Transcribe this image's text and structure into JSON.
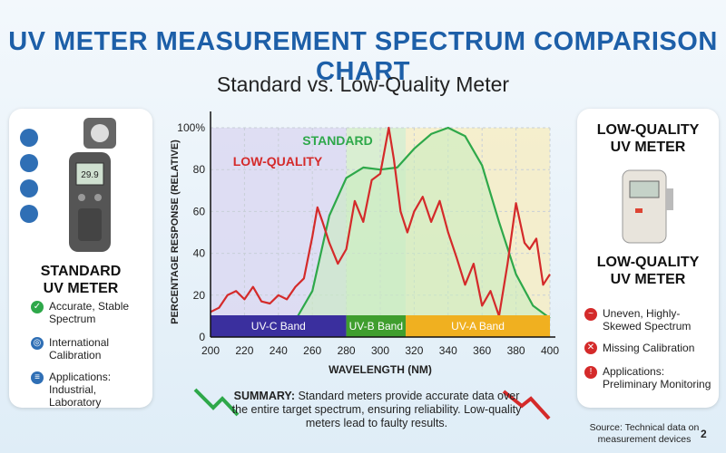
{
  "header": {
    "title": "UV METER MEASUREMENT SPECTRUM COMPARISON CHART",
    "subtitle": "Standard vs. Low-Quality Meter"
  },
  "chart_data": {
    "type": "line",
    "xlabel": "WAVELENGTH (NM)",
    "ylabel": "PERCENTAGE RESPONSE (RELATIVE)",
    "xlim": [
      200,
      400
    ],
    "xticks": [
      200,
      220,
      240,
      260,
      280,
      300,
      320,
      340,
      360,
      380,
      400
    ],
    "ylim": [
      0,
      100
    ],
    "yticks": [
      0,
      20,
      40,
      60,
      80,
      {
        "value": 100,
        "label": "100%"
      }
    ],
    "grid": true,
    "bands": [
      {
        "name": "UV-C Band",
        "start": 200,
        "end": 280,
        "color": "#3a2f9e",
        "shade": "#d9d6f0"
      },
      {
        "name": "UV-B Band",
        "start": 280,
        "end": 315,
        "color": "#3f9e2e",
        "shade": "#d3ecc4"
      },
      {
        "name": "UV-A Band",
        "start": 315,
        "end": 400,
        "color": "#f0b020",
        "shade": "#f7ecbd"
      }
    ],
    "series": [
      {
        "name": "STANDARD",
        "color": "#2ea84a",
        "fill": "#c9ecc0",
        "x": [
          200,
          210,
          220,
          230,
          240,
          250,
          260,
          270,
          280,
          290,
          300,
          310,
          320,
          330,
          340,
          350,
          360,
          370,
          380,
          390,
          400
        ],
        "values": [
          2,
          2,
          3,
          3,
          4,
          8,
          22,
          58,
          76,
          81,
          80,
          81,
          90,
          97,
          100,
          96,
          82,
          55,
          30,
          15,
          9
        ]
      },
      {
        "name": "LOW-QUALITY",
        "color": "#d42a2a",
        "x": [
          200,
          205,
          210,
          215,
          220,
          225,
          230,
          235,
          240,
          245,
          250,
          255,
          260,
          263,
          266,
          270,
          275,
          280,
          285,
          290,
          295,
          300,
          305,
          308,
          312,
          316,
          320,
          325,
          330,
          335,
          340,
          345,
          350,
          355,
          360,
          365,
          370,
          375,
          380,
          385,
          388,
          392,
          396,
          400
        ],
        "values": [
          12,
          14,
          20,
          22,
          18,
          24,
          17,
          16,
          20,
          18,
          24,
          28,
          48,
          62,
          55,
          45,
          35,
          42,
          65,
          55,
          75,
          78,
          100,
          85,
          60,
          50,
          60,
          67,
          55,
          65,
          50,
          38,
          25,
          35,
          15,
          22,
          10,
          35,
          64,
          45,
          42,
          47,
          25,
          30
        ]
      }
    ]
  },
  "left_panel": {
    "heading": [
      "STANDARD",
      "UV METER"
    ],
    "device_reading": "29.9",
    "items": [
      "Accurate, Stable Spectrum",
      "International Calibration",
      "Applications: Industrial, Laboratory"
    ]
  },
  "right_panel": {
    "heading_top": [
      "LOW-QUALITY",
      "UV METER"
    ],
    "heading": [
      "LOW-QUALITY",
      "UV METER"
    ],
    "items": [
      "Uneven, Highly-Skewed Spectrum",
      "Missing Calibration",
      "Applications: Preliminary Monitoring"
    ]
  },
  "summary": {
    "label": "SUMMARY:",
    "text": "Standard meters provide accurate data over the entire target spectrum, ensuring reliability. Low-quality meters lead to faulty results."
  },
  "source": "Source: Technical data on measurement devices",
  "page_number": "2"
}
